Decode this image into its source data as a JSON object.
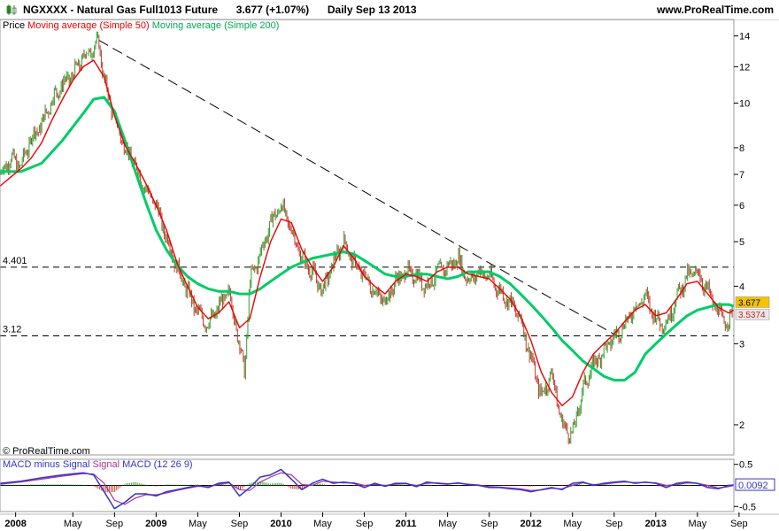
{
  "header": {
    "ticker": "NGXXXX",
    "instrument": "Natural Gas Full1013 Future",
    "last_price": "3.677",
    "change": "(+1.07%)",
    "timeframe": "Daily",
    "date": "Sep 13 2013",
    "site": "www.ProRealTime.com"
  },
  "legend": {
    "price": "Price",
    "ma50": "Moving average (Simple 50)",
    "ma200": "Moving average (Simple 200)"
  },
  "copyright": "© ProRealTime.com",
  "macd_legend": {
    "label1": "MACD minus Signal",
    "label2": "Signal",
    "label3": "MACD (12 26 9)"
  },
  "colors": {
    "up": "#2ca02c",
    "down": "#c0392b",
    "ma50": "#ee0000",
    "ma200": "#00cc66",
    "macd": "#3333cc",
    "signal": "#aa3399",
    "badge_price": "#f5c400",
    "badge_ma": "#e9e9e9"
  },
  "chart_data": {
    "type": "line",
    "scale": "log",
    "ylim": [
      1.72,
      15.2
    ],
    "xlim": [
      0,
      70.5
    ],
    "x_ticks": [
      {
        "label": "2008",
        "x": 1.5
      },
      {
        "label": "May",
        "x": 7
      },
      {
        "label": "Sep",
        "x": 11
      },
      {
        "label": "2009",
        "x": 15
      },
      {
        "label": "May",
        "x": 19
      },
      {
        "label": "Sep",
        "x": 23
      },
      {
        "label": "2010",
        "x": 27
      },
      {
        "label": "May",
        "x": 31
      },
      {
        "label": "Sep",
        "x": 35
      },
      {
        "label": "2011",
        "x": 39
      },
      {
        "label": "May",
        "x": 43
      },
      {
        "label": "Sep",
        "x": 47
      },
      {
        "label": "2012",
        "x": 51
      },
      {
        "label": "May",
        "x": 55
      },
      {
        "label": "Sep",
        "x": 59
      },
      {
        "label": "2013",
        "x": 63
      },
      {
        "label": "May",
        "x": 67
      },
      {
        "label": "Sep",
        "x": 71
      }
    ],
    "y_ticks": [
      {
        "label": "14",
        "y": 14
      },
      {
        "label": "12",
        "y": 12
      },
      {
        "label": "10",
        "y": 10
      },
      {
        "label": "8",
        "y": 8
      },
      {
        "label": "7",
        "y": 7
      },
      {
        "label": "6",
        "y": 6
      },
      {
        "label": "5",
        "y": 5
      },
      {
        "label": "4",
        "y": 4
      },
      {
        "label": "3",
        "y": 3
      },
      {
        "label": "2",
        "y": 2
      }
    ],
    "h_lines": [
      {
        "label": "4.401",
        "y": 4.401
      },
      {
        "label": "3.12",
        "y": 3.12
      }
    ],
    "trend_line": {
      "from": [
        9.5,
        13.7
      ],
      "to": [
        59.5,
        3.1
      ]
    },
    "price": {
      "x": [
        0,
        1,
        2,
        3,
        4,
        5,
        6,
        7,
        8,
        9,
        9.5,
        10,
        11,
        12,
        13,
        14,
        15,
        16,
        17,
        18,
        19,
        20,
        21,
        22,
        23,
        23.5,
        24,
        25,
        26,
        27,
        28,
        29,
        30,
        31,
        32,
        33,
        34,
        35,
        36,
        37,
        38,
        39,
        40,
        41,
        42,
        43,
        44,
        45,
        46,
        47,
        48,
        49,
        50,
        51,
        52,
        53,
        54,
        55,
        56,
        57,
        58,
        59,
        60,
        61,
        62,
        63,
        64,
        65,
        66,
        67,
        68,
        69,
        70,
        70.5
      ],
      "y": [
        7.0,
        7.6,
        7.3,
        8.4,
        9.0,
        10.2,
        11.0,
        11.5,
        12.6,
        13.2,
        13.6,
        11.2,
        9.3,
        8.0,
        7.3,
        6.5,
        6.0,
        5.1,
        4.4,
        3.9,
        3.5,
        3.3,
        3.6,
        3.9,
        3.0,
        2.6,
        4.1,
        4.7,
        5.5,
        6.0,
        5.3,
        4.6,
        4.3,
        3.9,
        4.5,
        5.0,
        4.5,
        4.2,
        3.9,
        3.7,
        4.1,
        4.3,
        4.2,
        4.0,
        4.3,
        4.4,
        4.6,
        4.1,
        4.3,
        4.2,
        3.9,
        3.7,
        3.4,
        2.8,
        2.3,
        2.6,
        2.0,
        1.9,
        2.4,
        2.7,
        2.9,
        3.1,
        3.3,
        3.6,
        3.8,
        3.4,
        3.3,
        3.8,
        4.2,
        4.3,
        3.9,
        3.5,
        3.3,
        3.68
      ]
    },
    "ma50": {
      "x": [
        0,
        1,
        2,
        3,
        4,
        5,
        6,
        7,
        8,
        9,
        10,
        11,
        12,
        13,
        14,
        15,
        16,
        17,
        18,
        19,
        20,
        21,
        22,
        23,
        24,
        25,
        26,
        27,
        28,
        29,
        30,
        31,
        32,
        33,
        34,
        35,
        36,
        37,
        38,
        39,
        40,
        41,
        42,
        43,
        44,
        45,
        46,
        47,
        48,
        49,
        50,
        51,
        52,
        53,
        54,
        55,
        56,
        57,
        58,
        59,
        60,
        61,
        62,
        63,
        64,
        65,
        66,
        67,
        68,
        69,
        70,
        70.5
      ],
      "y": [
        6.6,
        6.9,
        7.2,
        7.6,
        8.2,
        9.2,
        10.2,
        11.2,
        12.0,
        12.4,
        11.4,
        9.4,
        8.1,
        7.4,
        6.7,
        6.0,
        5.3,
        4.5,
        4.0,
        3.6,
        3.4,
        3.5,
        3.7,
        3.25,
        3.4,
        4.2,
        5.0,
        5.6,
        5.5,
        4.8,
        4.4,
        4.1,
        4.4,
        4.9,
        4.6,
        4.2,
        4.0,
        3.85,
        4.1,
        4.25,
        4.2,
        4.1,
        4.3,
        4.4,
        4.4,
        4.25,
        4.2,
        4.15,
        3.95,
        3.75,
        3.45,
        3.05,
        2.6,
        2.35,
        2.2,
        2.3,
        2.6,
        2.85,
        3.0,
        3.15,
        3.35,
        3.55,
        3.65,
        3.45,
        3.5,
        3.75,
        4.05,
        4.1,
        3.85,
        3.6,
        3.5,
        3.55
      ]
    },
    "ma200": {
      "x": [
        0,
        2,
        4,
        6,
        8,
        9,
        10,
        11,
        12,
        13,
        14,
        15,
        16,
        17,
        18,
        19,
        20,
        21,
        22,
        23,
        24,
        25,
        26,
        27,
        28,
        29,
        30,
        31,
        32,
        33,
        34,
        35,
        36,
        37,
        38,
        39,
        40,
        41,
        42,
        43,
        44,
        45,
        46,
        47,
        48,
        49,
        50,
        51,
        52,
        53,
        54,
        55,
        56,
        57,
        58,
        59,
        60,
        61,
        62,
        63,
        64,
        65,
        66,
        67,
        68,
        69,
        70,
        70.5
      ],
      "y": [
        7.1,
        7.1,
        7.4,
        8.3,
        9.5,
        10.2,
        10.3,
        9.6,
        8.3,
        7.1,
        6.1,
        5.3,
        4.8,
        4.45,
        4.2,
        4.05,
        3.95,
        3.9,
        3.9,
        3.85,
        3.85,
        3.95,
        4.1,
        4.25,
        4.4,
        4.5,
        4.6,
        4.65,
        4.7,
        4.75,
        4.7,
        4.55,
        4.4,
        4.25,
        4.2,
        4.2,
        4.25,
        4.25,
        4.2,
        4.15,
        4.2,
        4.3,
        4.3,
        4.3,
        4.2,
        4.05,
        3.85,
        3.65,
        3.45,
        3.25,
        3.05,
        2.9,
        2.75,
        2.65,
        2.55,
        2.5,
        2.5,
        2.6,
        2.85,
        3.0,
        3.15,
        3.3,
        3.45,
        3.55,
        3.6,
        3.65,
        3.65,
        3.62
      ]
    },
    "badges": [
      {
        "label": "3.677",
        "y": 3.677
      },
      {
        "label": "3.5374",
        "y": 3.5374
      }
    ],
    "macd_panel": {
      "ylim": [
        -0.62,
        0.62
      ],
      "y_ticks": [
        {
          "label": "0.5",
          "y": 0.5
        },
        {
          "label": "-0.5",
          "y": -0.5
        }
      ],
      "badge": {
        "label": "0.0092",
        "y": 0.0092
      },
      "macd": {
        "x": [
          0,
          2,
          4,
          6,
          8,
          9,
          10,
          11,
          12,
          13,
          14,
          15,
          16,
          17,
          18,
          19,
          20,
          21,
          22,
          23,
          24,
          25,
          26,
          27,
          28,
          29,
          30,
          31,
          32,
          33,
          34,
          35,
          36,
          37,
          38,
          39,
          40,
          41,
          42,
          43,
          44,
          45,
          46,
          47,
          48,
          49,
          50,
          51,
          52,
          53,
          54,
          55,
          56,
          57,
          58,
          59,
          60,
          61,
          62,
          63,
          64,
          65,
          66,
          67,
          68,
          69,
          70,
          70.5
        ],
        "y": [
          0.05,
          0.1,
          0.18,
          0.25,
          0.3,
          0.25,
          -0.15,
          -0.55,
          -0.4,
          -0.2,
          -0.2,
          -0.25,
          -0.15,
          -0.1,
          -0.05,
          0,
          -0.05,
          0.05,
          0.08,
          -0.25,
          -0.05,
          0.2,
          0.25,
          0.38,
          0.15,
          -0.1,
          0.05,
          0.15,
          0.05,
          0.08,
          0.05,
          -0.05,
          0.05,
          -0.02,
          0.05,
          0.05,
          -0.03,
          0.08,
          0.05,
          0.03,
          0.06,
          0.02,
          0.0,
          -0.05,
          -0.05,
          -0.08,
          -0.1,
          -0.15,
          -0.1,
          -0.05,
          -0.1,
          0.05,
          0.08,
          0.0,
          0.05,
          0.08,
          0.1,
          0.05,
          0.08,
          0.05,
          -0.05,
          0.05,
          0.08,
          0.05,
          -0.05,
          -0.08,
          0.0,
          0.01
        ]
      },
      "signal": {
        "x": [
          0,
          2,
          4,
          6,
          8,
          9,
          10,
          11,
          12,
          13,
          14,
          15,
          16,
          17,
          18,
          19,
          20,
          21,
          22,
          23,
          24,
          25,
          26,
          27,
          28,
          29,
          30,
          31,
          32,
          33,
          34,
          35,
          36,
          37,
          38,
          39,
          40,
          41,
          42,
          43,
          44,
          45,
          46,
          47,
          48,
          49,
          50,
          51,
          52,
          53,
          54,
          55,
          56,
          57,
          58,
          59,
          60,
          61,
          62,
          63,
          64,
          65,
          66,
          67,
          68,
          69,
          70,
          70.5
        ],
        "y": [
          0.03,
          0.08,
          0.15,
          0.22,
          0.28,
          0.27,
          0.05,
          -0.35,
          -0.45,
          -0.3,
          -0.22,
          -0.22,
          -0.18,
          -0.12,
          -0.07,
          -0.02,
          -0.03,
          0.02,
          0.06,
          -0.1,
          -0.12,
          0.08,
          0.2,
          0.3,
          0.25,
          0.02,
          0.0,
          0.1,
          0.08,
          0.06,
          0.06,
          0.0,
          0.02,
          0.0,
          0.03,
          0.04,
          0.0,
          0.05,
          0.06,
          0.04,
          0.05,
          0.03,
          0.01,
          -0.03,
          -0.04,
          -0.06,
          -0.08,
          -0.12,
          -0.11,
          -0.07,
          -0.08,
          0.0,
          0.06,
          0.02,
          0.03,
          0.06,
          0.08,
          0.07,
          0.07,
          0.06,
          0.0,
          0.02,
          0.06,
          0.05,
          0.0,
          -0.06,
          -0.03,
          0.0
        ]
      }
    }
  }
}
